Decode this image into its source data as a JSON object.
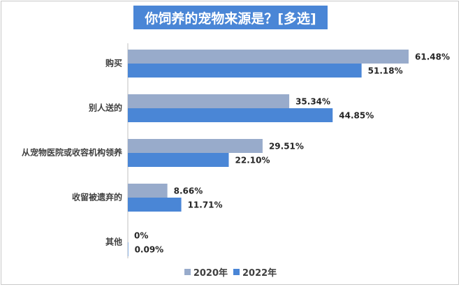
{
  "chart_data": {
    "type": "bar",
    "orientation": "horizontal",
    "title": "你饲养的宠物来源是？[多选]",
    "categories": [
      "购买",
      "别人送的",
      "从宠物医院或收容机构领养",
      "收留被遗弃的",
      "其他"
    ],
    "series": [
      {
        "name": "2020年",
        "color": "#98abcb",
        "values": [
          61.48,
          35.34,
          29.51,
          8.66,
          0
        ],
        "labels": [
          "61.48%",
          "35.34%",
          "29.51%",
          "8.66%",
          "0%"
        ]
      },
      {
        "name": "2022年",
        "color": "#4a86d6",
        "values": [
          51.18,
          44.85,
          22.1,
          11.71,
          0.09
        ],
        "labels": [
          "51.18%",
          "44.85%",
          "22.10%",
          "11.71%",
          "0.09%"
        ]
      }
    ],
    "xlim": [
      0,
      61.48
    ],
    "grid": false,
    "legend_position": "bottom"
  }
}
